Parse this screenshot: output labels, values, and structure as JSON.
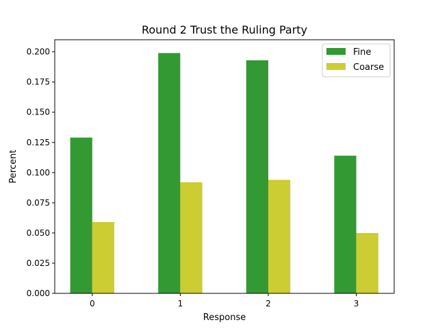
{
  "chart_data": {
    "type": "bar",
    "title": "Round 2 Trust the Ruling Party",
    "xlabel": "Response",
    "ylabel": "Percent",
    "categories": [
      "0",
      "1",
      "2",
      "3"
    ],
    "series": [
      {
        "name": "Fine",
        "values": [
          0.129,
          0.199,
          0.193,
          0.114
        ],
        "color": "#339933"
      },
      {
        "name": "Coarse",
        "values": [
          0.059,
          0.092,
          0.094,
          0.05
        ],
        "color": "#cccc33"
      }
    ],
    "ylim": [
      0,
      0.21
    ],
    "yticks": [
      "0.000",
      "0.025",
      "0.050",
      "0.075",
      "0.100",
      "0.125",
      "0.150",
      "0.175",
      "0.200"
    ],
    "grid": false,
    "legend_position": "top-right"
  }
}
